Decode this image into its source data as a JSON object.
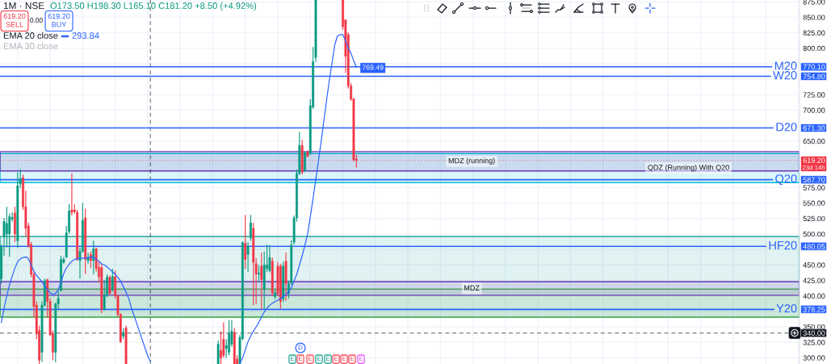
{
  "chart_data": {
    "type": "candlestick",
    "title": "1M · NSE",
    "categories": [
      null,
      null,
      null,
      null,
      null,
      null,
      null,
      null,
      null,
      null,
      null,
      null,
      null,
      null,
      null,
      null,
      null,
      null,
      null,
      null,
      null,
      null,
      null,
      null,
      null,
      null,
      null,
      null,
      null,
      null,
      null,
      null,
      null,
      null,
      null,
      null,
      null,
      null,
      null,
      null,
      null,
      null,
      null,
      null,
      null,
      null,
      null,
      null,
      null,
      null,
      null,
      null,
      null,
      null,
      null,
      null,
      null,
      null,
      null,
      null,
      null,
      null,
      null,
      null,
      null,
      null,
      null,
      null,
      null,
      null,
      null,
      null,
      null,
      null,
      null,
      null,
      null,
      null,
      null,
      null,
      null,
      null,
      null,
      null,
      null,
      null,
      null,
      null,
      null,
      null,
      null,
      null,
      null,
      null,
      null,
      null,
      null,
      null,
      null,
      null,
      null,
      null,
      null,
      null,
      null,
      null,
      null,
      null,
      null,
      null,
      null,
      null,
      null,
      null,
      null,
      null,
      null,
      null,
      null,
      null,
      null,
      null,
      null,
      null,
      null,
      null,
      null,
      null,
      null,
      null,
      null,
      null,
      null,
      null,
      null,
      null,
      null,
      null,
      null,
      null,
      null,
      null,
      null,
      null,
      null,
      null,
      null,
      null,
      null,
      null,
      null,
      null,
      null,
      null,
      null,
      null,
      null,
      null,
      null,
      null,
      null,
      null,
      null,
      null,
      null,
      null,
      null,
      null,
      null,
      null,
      null,
      null,
      null,
      null,
      null,
      null,
      null,
      null,
      null,
      null,
      null,
      null,
      null,
      null,
      null,
      null,
      null,
      null,
      null,
      null,
      null,
      null,
      null,
      null,
      null,
      null,
      null,
      null,
      null,
      null,
      null,
      null,
      null,
      null,
      null,
      null,
      null,
      null,
      null,
      null,
      null,
      null,
      null,
      null,
      null,
      null,
      null,
      null,
      null,
      null,
      null,
      null,
      null,
      null,
      null,
      null,
      null,
      null,
      null,
      null,
      null,
      null,
      null,
      null,
      null,
      null,
      null,
      null,
      null,
      null,
      null,
      null,
      null,
      null,
      null,
      null,
      null,
      null,
      null,
      null,
      null,
      null,
      null,
      null,
      null,
      null,
      null,
      null,
      null,
      null,
      null,
      null,
      null,
      null,
      null,
      null,
      null,
      null,
      null,
      null,
      null,
      null,
      null,
      null,
      null,
      null,
      null,
      null,
      null,
      null,
      null,
      null,
      null,
      null,
      null,
      null,
      null,
      null,
      null,
      null,
      null,
      null,
      null,
      null,
      null
    ],
    "ohlc": [
      [
        428,
        483,
        420,
        480
      ],
      [
        496,
        526,
        465,
        520
      ],
      [
        500,
        544,
        478,
        517
      ],
      [
        500,
        533,
        463,
        528
      ],
      [
        524,
        535,
        520,
        527
      ],
      [
        534,
        544,
        487,
        500
      ],
      [
        489,
        600,
        478,
        578
      ],
      [
        581,
        605,
        574,
        589
      ],
      [
        591,
        596,
        539,
        544
      ],
      [
        544,
        570,
        496,
        509
      ],
      [
        513,
        518,
        478,
        481
      ],
      [
        483,
        487,
        430,
        435
      ],
      [
        435,
        439,
        365,
        383
      ],
      [
        385,
        391,
        330,
        339
      ],
      [
        344,
        352,
        290,
        296
      ],
      [
        309,
        391,
        293,
        385
      ],
      [
        385,
        428,
        383,
        424
      ],
      [
        426,
        428,
        365,
        391
      ],
      [
        391,
        396,
        335,
        337
      ],
      [
        339,
        344,
        296,
        309
      ],
      [
        309,
        389,
        293,
        387
      ],
      [
        387,
        409,
        378,
        396
      ],
      [
        409,
        465,
        407,
        459
      ],
      [
        454,
        463,
        452,
        459
      ],
      [
        463,
        513,
        461,
        502
      ],
      [
        504,
        548,
        500,
        537
      ],
      [
        539,
        598,
        530,
        535
      ],
      [
        539,
        548,
        533,
        536
      ],
      [
        535,
        539,
        457,
        459
      ],
      [
        457,
        478,
        428,
        472
      ],
      [
        472,
        550,
        470,
        522
      ],
      [
        526,
        541,
        435,
        459
      ],
      [
        457,
        470,
        452,
        462
      ],
      [
        467,
        472,
        445,
        457
      ],
      [
        457,
        489,
        435,
        476
      ],
      [
        476,
        478,
        439,
        444
      ],
      [
        446,
        456,
        422,
        431
      ],
      [
        446,
        452,
        372,
        378
      ],
      [
        378,
        426,
        376,
        402
      ],
      [
        402,
        435,
        398,
        430
      ],
      [
        430,
        433,
        402,
        404
      ],
      [
        409,
        444,
        407,
        431
      ],
      [
        431,
        441,
        396,
        400
      ],
      [
        400,
        402,
        367,
        370
      ],
      [
        370,
        372,
        324,
        326
      ],
      [
        335,
        348,
        330,
        341
      ],
      [
        348,
        352,
        290,
        290
      ],
      null,
      null,
      null,
      null,
      null,
      null,
      null,
      null,
      null,
      null,
      null,
      null,
      null,
      null,
      null,
      null,
      null,
      null,
      null,
      null,
      null,
      null,
      null,
      null,
      null,
      null,
      null,
      null,
      null,
      null,
      null,
      null,
      null,
      [
        290,
        328,
        290,
        322
      ],
      [
        312,
        343,
        290,
        300
      ],
      [
        330,
        357,
        300,
        304
      ],
      [
        315,
        330,
        300,
        320
      ],
      [
        309,
        361,
        304,
        339
      ],
      [
        322,
        361,
        318,
        343
      ],
      [
        341,
        348,
        290,
        290
      ],
      [
        298,
        304,
        290,
        290
      ],
      [
        290,
        337,
        290,
        333
      ],
      [
        331,
        488,
        328,
        486
      ],
      [
        485,
        531,
        444,
        459
      ],
      [
        467,
        487,
        439,
        480
      ],
      [
        494,
        531,
        489,
        518
      ],
      [
        509,
        518,
        385,
        454
      ],
      [
        452,
        461,
        387,
        435
      ],
      [
        435,
        450,
        422,
        437
      ],
      [
        448,
        470,
        378,
        426
      ],
      [
        411,
        472,
        378,
        450
      ],
      [
        444,
        483,
        439,
        450
      ],
      [
        441,
        482,
        438,
        462
      ],
      [
        456,
        462,
        400,
        405
      ],
      [
        399,
        410,
        395,
        405
      ],
      [
        448,
        455,
        400,
        404
      ],
      [
        448,
        452,
        379,
        391
      ],
      [
        395,
        455,
        390,
        448
      ],
      [
        456,
        470,
        392,
        420
      ],
      [
        404,
        425,
        396,
        420
      ],
      [
        421,
        490,
        417,
        482
      ],
      [
        487,
        530,
        483,
        526
      ],
      [
        526,
        604,
        520,
        598
      ],
      [
        598,
        665,
        595,
        643
      ],
      [
        643,
        652,
        596,
        600
      ],
      [
        602,
        633,
        600,
        631
      ],
      [
        633,
        635,
        624,
        626
      ],
      [
        631,
        718,
        628,
        707
      ],
      [
        705,
        802,
        702,
        778
      ],
      [
        785,
        878,
        778,
        878
      ],
      null,
      null,
      null,
      null,
      null,
      null,
      null,
      null,
      null,
      [
        878,
        878,
        830,
        835
      ],
      [
        846,
        846,
        760,
        787
      ],
      [
        822,
        826,
        735,
        739
      ],
      [
        739,
        744,
        715,
        718
      ],
      [
        718,
        720,
        617,
        620
      ],
      [
        621,
        628,
        607,
        619.2
      ],
      null,
      null,
      null,
      null,
      null,
      null,
      null,
      null,
      null,
      null,
      null,
      null,
      null,
      null,
      null,
      null,
      null,
      null,
      null,
      null,
      null,
      null,
      null,
      null,
      null,
      null,
      null,
      null,
      null,
      null,
      null,
      null,
      null,
      null,
      null,
      null,
      null,
      null,
      null,
      null,
      null,
      null,
      null,
      null,
      null,
      null,
      null,
      null,
      null,
      null,
      null,
      null,
      null,
      null,
      null,
      null,
      null,
      null,
      null,
      null,
      null,
      null,
      null,
      null,
      null,
      null,
      null,
      null,
      null,
      null,
      null,
      null,
      null,
      null,
      null,
      null,
      null,
      null,
      null,
      null,
      null,
      null,
      null,
      null,
      null,
      null,
      null,
      null,
      null,
      null,
      null,
      null,
      null,
      null,
      null,
      null,
      null,
      null,
      null,
      null,
      null,
      null,
      null,
      null,
      null,
      null,
      null,
      null,
      null,
      null,
      null,
      null,
      null,
      null,
      null,
      null,
      null,
      null,
      null,
      null,
      null,
      null,
      null,
      null,
      null,
      null,
      null,
      null,
      null,
      null,
      null,
      null,
      null,
      null,
      null,
      null,
      null,
      null,
      null,
      null,
      null,
      null,
      null,
      null,
      null,
      null,
      null,
      null,
      null,
      null,
      null,
      null,
      null,
      null,
      null,
      null,
      null,
      null,
      null,
      null,
      null,
      null,
      null
    ],
    "colors": [
      "#089981",
      "#089981",
      "#089981",
      "#089981",
      "#089981",
      "#f23645",
      "#089981",
      "#089981",
      "#f23645",
      "#f23645",
      "#f23645",
      "#f23645",
      "#f23645",
      "#f23645",
      "#f23645",
      "#089981",
      "#089981",
      "#f23645",
      "#f23645",
      "#f23645",
      "#089981",
      "#089981",
      "#089981",
      "#089981",
      "#089981",
      "#089981",
      "#f23645",
      "#f23645",
      "#f23645",
      "#089981",
      "#089981",
      "#f23645",
      "#089981",
      "#f23645",
      "#089981",
      "#f23645",
      "#f23645",
      "#f23645",
      "#089981",
      "#089981",
      "#f23645",
      "#089981",
      "#f23645",
      "#f23645",
      "#f23645",
      "#089981",
      "#f23645",
      null,
      null,
      null,
      null,
      null,
      null,
      null,
      null,
      null,
      null,
      null,
      null,
      null,
      null,
      null,
      null,
      null,
      null,
      null,
      null,
      null,
      null,
      null,
      null,
      null,
      null,
      null,
      null,
      null,
      null,
      null,
      null,
      null,
      "#089981",
      "#f23645",
      "#f23645",
      "#089981",
      "#089981",
      "#089981",
      "#f23645",
      "#f23645",
      "#089981",
      "#089981",
      "#f23645",
      "#089981",
      "#089981",
      "#f23645",
      "#f23645",
      "#089981",
      "#f23645",
      "#089981",
      "#089981",
      "#089981",
      "#f23645",
      "#089981",
      "#f23645",
      "#f23645",
      "#089981",
      "#f23645",
      "#089981",
      "#089981",
      "#089981",
      "#089981",
      "#089981",
      "#f23645",
      "#089981",
      "#f23645",
      "#089981",
      "#089981",
      "#089981",
      null,
      null,
      null,
      null,
      null,
      null,
      null,
      null,
      null,
      "#f23645",
      "#f23645",
      "#f23645",
      "#f23645",
      "#f23645",
      "#f23645",
      null,
      null,
      null,
      null,
      null,
      null,
      null,
      null,
      null,
      null,
      null,
      null,
      null,
      null,
      null,
      null,
      null,
      null,
      null,
      null,
      null,
      null,
      null,
      null,
      null,
      null,
      null,
      null,
      null,
      null,
      null,
      null,
      null,
      null,
      null,
      null,
      null,
      null,
      null,
      null,
      null,
      null,
      null,
      null,
      null,
      null,
      null,
      null,
      null,
      null,
      null,
      null,
      null,
      null,
      null,
      null,
      null,
      null,
      null,
      null,
      null,
      null,
      null,
      null,
      null,
      null,
      null,
      null,
      null,
      null,
      null,
      null,
      null,
      null,
      null,
      null,
      null,
      null,
      null,
      null,
      null,
      null,
      null,
      null,
      null,
      null,
      null,
      null,
      null,
      null,
      null,
      null,
      null,
      null,
      null,
      null,
      null,
      null,
      null,
      null,
      null,
      null,
      null,
      null,
      null,
      null,
      null,
      null,
      null,
      null,
      null,
      null,
      null,
      null,
      null,
      null,
      null,
      null,
      null,
      null,
      null,
      null,
      null,
      null,
      null,
      null,
      null,
      null,
      null,
      null,
      null,
      null,
      null,
      null,
      null,
      null,
      null,
      null,
      null,
      null,
      null,
      null,
      null,
      null,
      null,
      null,
      null,
      null,
      null,
      null,
      null,
      null,
      null,
      null,
      null,
      null,
      null,
      null,
      null,
      null,
      null,
      null,
      null
    ],
    "series": [
      {
        "type": "line",
        "name": "EMA 20 close",
        "color": "#2962ff",
        "values": [
          357,
          380,
          400,
          418,
          432,
          445,
          455,
          460,
          462,
          463,
          460,
          450,
          440,
          433,
          428,
          423,
          416,
          410,
          405,
          402,
          404,
          410,
          422,
          436,
          445,
          451,
          456,
          459,
          460,
          461,
          461,
          461,
          462,
          463,
          462,
          459,
          456,
          452,
          450,
          447,
          443,
          439,
          435,
          430,
          424,
          415,
          406,
          396,
          380,
          368,
          355,
          342,
          329,
          316,
          303,
          294,
          null,
          null,
          null,
          null,
          null,
          null,
          null,
          null,
          null,
          null,
          null,
          null,
          null,
          null,
          null,
          null,
          null,
          null,
          null,
          null,
          null,
          null,
          null,
          null,
          null,
          null,
          null,
          null,
          null,
          null,
          null,
          null,
          291,
          300,
          313,
          326,
          335,
          343,
          350,
          357,
          366,
          374,
          380,
          385,
          388,
          391,
          393,
          396,
          399,
          402,
          407,
          413,
          424,
          435,
          450,
          465,
          482,
          500,
          528,
          557,
          588,
          618,
          650,
          683,
          716,
          748,
          776,
          805,
          820,
          822,
          822,
          812,
          800,
          792,
          780,
          769.49,
          null,
          null,
          null,
          null,
          null,
          null,
          null,
          null,
          null,
          null,
          null,
          null,
          null,
          null,
          null,
          null,
          null,
          null,
          null,
          null,
          null,
          null,
          null,
          null,
          null,
          null,
          null,
          null,
          null,
          null,
          null,
          null,
          null,
          null,
          null,
          null,
          null,
          null,
          null,
          null,
          null,
          null,
          null,
          null,
          null,
          null,
          null,
          null,
          null,
          null,
          null,
          null,
          null,
          null,
          null,
          null,
          null,
          null,
          null,
          null,
          null,
          null,
          null,
          null,
          null,
          null,
          null,
          null,
          null,
          null,
          null,
          null,
          null,
          null,
          null,
          null,
          null,
          null,
          null,
          null,
          null,
          null,
          null,
          null,
          null,
          null,
          null,
          null,
          null,
          null,
          null,
          null,
          null,
          null,
          null,
          null,
          null,
          null,
          null,
          null,
          null,
          null,
          null,
          null,
          null,
          null,
          null,
          null,
          null,
          null,
          null,
          null,
          null,
          null,
          null,
          null,
          null,
          null,
          null,
          null,
          null,
          null,
          null,
          null,
          null,
          null,
          null,
          null,
          null,
          null,
          null,
          null,
          null,
          null,
          null,
          null,
          null,
          null,
          null,
          null,
          null,
          null,
          null,
          null,
          null,
          null,
          null,
          null,
          null,
          null,
          null,
          null,
          null,
          null,
          null,
          null,
          null,
          null,
          null,
          null,
          null,
          null,
          null
        ],
        "value_labels": [
          null,
          null,
          null,
          null,
          null,
          null,
          null,
          null,
          null,
          null,
          null,
          null,
          null,
          null,
          null,
          null,
          null,
          null,
          null,
          null,
          null,
          null,
          null,
          null,
          null,
          null,
          null,
          null,
          null,
          null,
          null,
          null,
          null,
          null,
          null,
          null,
          null,
          null,
          null,
          null,
          null,
          null,
          null,
          null,
          null,
          null,
          null,
          null,
          null,
          null,
          null,
          null,
          null,
          null,
          null,
          null,
          null,
          null,
          null,
          null,
          null,
          null,
          null,
          null,
          null,
          null,
          null,
          null,
          null,
          null,
          null,
          null,
          null,
          null,
          null,
          null,
          null,
          null,
          null,
          null,
          null,
          null,
          null,
          null,
          null,
          null,
          null,
          null,
          null,
          null,
          null,
          null,
          null,
          null,
          null,
          null,
          null,
          null,
          null,
          null,
          null,
          null,
          null,
          null,
          null,
          null,
          null,
          null,
          null,
          null,
          null,
          null,
          null,
          null,
          null,
          null,
          null,
          null,
          null,
          null,
          null,
          null,
          null,
          null,
          null,
          null,
          null,
          null,
          null,
          null,
          null,
          "769.49",
          null,
          null,
          null,
          null,
          null,
          null,
          null,
          null,
          null,
          null,
          null,
          null,
          null,
          null,
          null,
          null,
          null,
          null,
          null,
          null,
          null,
          null,
          null,
          null,
          null,
          null,
          null,
          null,
          null,
          null,
          null,
          null,
          null,
          null,
          null,
          null,
          null,
          null,
          null,
          null,
          null,
          null,
          null,
          null,
          null,
          null,
          null,
          null,
          null,
          null,
          null,
          null,
          null,
          null,
          null,
          null,
          null,
          null,
          null,
          null,
          null,
          null,
          null,
          null,
          null,
          null,
          null,
          null,
          null,
          null,
          null,
          null,
          null,
          null,
          null,
          null,
          null,
          null,
          null,
          null,
          null,
          null,
          null,
          null,
          null,
          null,
          null,
          null,
          null,
          null,
          null,
          null,
          null,
          null,
          null,
          null,
          null,
          null,
          null,
          null,
          null,
          null,
          null,
          null,
          null,
          null,
          null,
          null,
          null,
          null,
          null,
          null,
          null,
          null,
          null,
          null,
          null,
          null,
          null,
          null,
          null,
          null,
          null,
          null,
          null,
          null,
          null,
          null,
          null,
          null,
          null,
          null,
          null,
          null,
          null,
          null,
          null,
          null,
          null,
          null,
          null,
          null,
          null,
          null,
          null,
          null,
          null,
          null,
          null,
          null,
          null,
          null,
          null,
          null,
          null,
          null,
          null,
          null,
          null,
          null,
          null,
          null,
          null
        ]
      }
    ],
    "ylim": [
      290,
      878
    ],
    "yticks": [
      {
        "value": 300,
        "label": "300.00"
      },
      {
        "value": 325,
        "label": "325.00"
      },
      {
        "value": 350,
        "label": "350.00"
      },
      {
        "value": 375,
        "label": null
      },
      {
        "value": 400,
        "label": "400.00"
      },
      {
        "value": 425,
        "label": "425.00"
      },
      {
        "value": 450,
        "label": "450.00"
      },
      {
        "value": 475,
        "label": null
      },
      {
        "value": 500,
        "label": "500.00"
      },
      {
        "value": 525,
        "label": "525.00"
      },
      {
        "value": 550,
        "label": "550.00"
      },
      {
        "value": 575,
        "label": "575.00"
      },
      {
        "value": 600,
        "label": null
      },
      {
        "value": 625,
        "label": null
      },
      {
        "value": 650,
        "label": "650.00"
      },
      {
        "value": 675,
        "label": null
      },
      {
        "value": 700,
        "label": "700.00"
      },
      {
        "value": 725,
        "label": "725.00"
      },
      {
        "value": 750,
        "label": null
      },
      {
        "value": 775,
        "label": null
      },
      {
        "value": 800,
        "label": "800.00"
      },
      {
        "value": 825,
        "label": "825.00"
      },
      {
        "value": 850,
        "label": "850.00"
      },
      {
        "value": 875,
        "label": "875.00"
      }
    ],
    "grid": true,
    "legend": "top left",
    "tick_labels": "y",
    "ref_lines": [
      {
        "axis": "y",
        "value": 770.1,
        "label": "M20",
        "color": "#2962ff",
        "line_style": "solid"
      },
      {
        "axis": "y",
        "value": 754.8,
        "label": "W20",
        "color": "#2962ff",
        "line_style": "solid"
      },
      {
        "axis": "y",
        "value": 671.3,
        "label": "D20",
        "color": "#2962ff",
        "line_style": "solid"
      },
      {
        "axis": "y",
        "value": 587.7,
        "label": "Q20",
        "color": "#2962ff",
        "line_style": "solid"
      },
      {
        "axis": "y",
        "value": 480.05,
        "label": "HF20",
        "color": "#2962ff",
        "line_style": "solid"
      },
      {
        "axis": "y",
        "value": 378.25,
        "label": "Y20",
        "color": "#2962ff",
        "line_style": "solid"
      },
      {
        "axis": "y",
        "value": 619.2,
        "label": "23d 14h",
        "color": "#f23645",
        "line_style": "dotted"
      },
      {
        "axis": "y",
        "value": 340,
        "color": "#131722",
        "line_style": "dashed"
      }
    ],
    "bands": [
      {
        "axis": "y",
        "from": 583,
        "to": 630,
        "label": "QDZ (Running) With Q20",
        "color": "#00bcd4"
      },
      {
        "axis": "y",
        "from": 602,
        "to": 633,
        "label": "MDZ (running)",
        "color": "#673ab7"
      },
      {
        "axis": "y",
        "from": 366,
        "to": 496,
        "color": "#26a69a"
      },
      {
        "axis": "y",
        "from": 366,
        "to": 411,
        "color": "#4caf50"
      },
      {
        "axis": "y",
        "from": 401,
        "to": 423,
        "label": "MDZ",
        "color": "#673ab7"
      }
    ],
    "annotations": [
      "O173.50 H198.30 L165.10 C181.20 +8.50 (+4.92%)",
      "619.20\nSELL",
      "0.00",
      "619.20\nBUY",
      "293.84",
      "EMA 30 close",
      "D",
      "E",
      "E",
      "E",
      "E",
      "E",
      "E",
      "E",
      "E",
      "E",
      "770.10",
      "754.80",
      "671.30",
      "587.70",
      "480.05",
      "378.25",
      "619.20",
      "340.00"
    ]
  }
}
